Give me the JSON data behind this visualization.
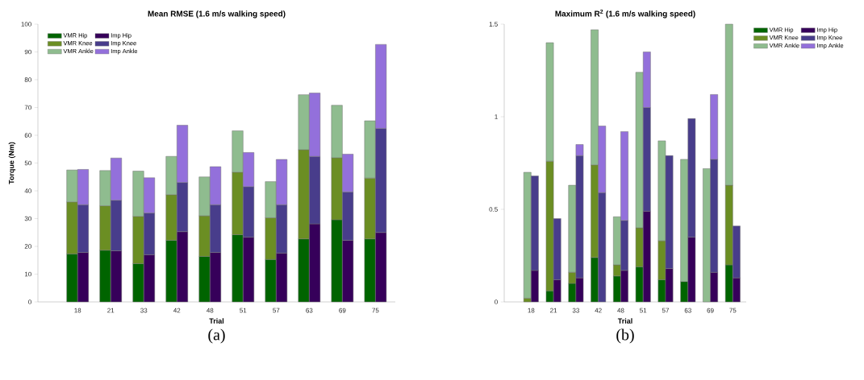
{
  "chart_data": [
    {
      "type": "bar",
      "title": "Mean RMSE (1.6 m/s walking speed)",
      "xlabel": "Trial",
      "ylabel": "Torque (Nm)",
      "legend": "top left",
      "categories": [
        "18",
        "21",
        "33",
        "42",
        "48",
        "51",
        "57",
        "63",
        "69",
        "75"
      ],
      "ylim": [
        0,
        100
      ],
      "yticks": [
        0,
        10,
        20,
        30,
        40,
        50,
        60,
        70,
        80,
        90,
        100
      ],
      "series": [
        {
          "name": "VMR Hip",
          "color": "#006400",
          "values": [
            17.3,
            18.6,
            13.8,
            22.2,
            16.4,
            24.2,
            15.3,
            22.7,
            29.6,
            22.7
          ],
          "base": [
            0,
            0,
            0,
            0,
            0,
            0,
            0,
            0,
            0,
            0
          ]
        },
        {
          "name": "VMR Knee",
          "color": "#6b8e23",
          "values": [
            18.7,
            16,
            17,
            16.4,
            14.6,
            22.5,
            15,
            32.1,
            22.3,
            21.9
          ],
          "base": [
            17.3,
            18.6,
            13.8,
            22.2,
            16.4,
            24.2,
            15.3,
            22.7,
            29.6,
            22.7
          ]
        },
        {
          "name": "VMR Ankle",
          "color": "#8fbc8f",
          "values": [
            11.5,
            12.7,
            16.3,
            13.8,
            14,
            14.9,
            13,
            19.8,
            18.9,
            20.6
          ],
          "base": [
            36,
            34.6,
            30.8,
            38.6,
            31,
            46.7,
            30.3,
            54.8,
            51.9,
            44.6
          ]
        },
        {
          "name": "Imp Hip",
          "color": "#36005a",
          "values": [
            17.8,
            18.4,
            17,
            25.3,
            17.8,
            23.3,
            17.6,
            28.1,
            22.2,
            25
          ],
          "base": [
            0,
            0,
            0,
            0,
            0,
            0,
            0,
            0,
            0,
            0
          ]
        },
        {
          "name": "Imp Knee",
          "color": "#483d8b",
          "values": [
            17.2,
            18.2,
            15,
            17.7,
            17.2,
            18.2,
            17.4,
            24.3,
            17.4,
            37.5
          ],
          "base": [
            17.8,
            18.4,
            17,
            25.3,
            17.8,
            23.3,
            17.6,
            28.1,
            22.2,
            25
          ]
        },
        {
          "name": "Imp Ankle",
          "color": "#9370db",
          "values": [
            12.7,
            15.2,
            12.7,
            20.6,
            13.7,
            12.3,
            16.3,
            22.8,
            13.6,
            30.2
          ],
          "base": [
            35,
            36.6,
            32,
            43,
            35,
            41.5,
            35,
            52.4,
            39.6,
            62.5
          ]
        }
      ],
      "annotations": [
        "(a)"
      ]
    },
    {
      "type": "bar",
      "title": "Maximum R$^{2}$ (1.6 m/s walking speed)",
      "xlabel": "Trial",
      "legend": "right",
      "categories": [
        "18",
        "21",
        "33",
        "42",
        "48",
        "51",
        "57",
        "63",
        "69",
        "75"
      ],
      "ylim": [
        0,
        1.5
      ],
      "yticks": [
        0,
        0.5,
        1,
        1.5
      ],
      "series": [
        {
          "name": "VMR Hip",
          "color": "#006400",
          "values": [
            0,
            0.06,
            0.1,
            0.24,
            0.14,
            0.19,
            0.12,
            0.11,
            0,
            0.2
          ],
          "base": [
            null,
            0,
            0,
            0,
            0,
            0,
            0,
            0,
            null,
            0
          ]
        },
        {
          "name": "VMR Knee",
          "color": "#6b8e23",
          "values": [
            0.02,
            0.7,
            0.06,
            0.5,
            0.06,
            0.21,
            0.21,
            0,
            0,
            0.43
          ],
          "base": [
            0,
            0.06,
            0.1,
            0.24,
            0.14,
            0.19,
            0.12,
            null,
            null,
            0.2
          ]
        },
        {
          "name": "VMR Ankle",
          "color": "#8fbc8f",
          "values": [
            0.68,
            0.64,
            0.47,
            0.73,
            0.26,
            0.84,
            0.54,
            0.66,
            0.72,
            0.87
          ],
          "base": [
            0.02,
            0.76,
            0.16,
            0.74,
            0.2,
            0.4,
            0.33,
            0.11,
            0,
            0.63
          ]
        },
        {
          "name": "Imp Hip",
          "color": "#36005a",
          "values": [
            0.17,
            0.12,
            0.13,
            0,
            0.17,
            0.49,
            0.18,
            0.35,
            0.16,
            0.13
          ],
          "base": [
            0,
            0,
            0,
            null,
            0,
            0,
            0,
            0,
            0,
            0
          ]
        },
        {
          "name": "Imp Knee",
          "color": "#483d8b",
          "values": [
            0.51,
            0.33,
            0.66,
            0.59,
            0.27,
            0.56,
            0.61,
            0.64,
            0.61,
            0.28
          ],
          "base": [
            0.17,
            0.12,
            0.13,
            0,
            0.17,
            0.49,
            0.18,
            0.35,
            0.16,
            0.13
          ]
        },
        {
          "name": "Imp Ankle",
          "color": "#9370db",
          "values": [
            0,
            0,
            0.06,
            0.36,
            0.48,
            0.3,
            0,
            0,
            0.35,
            0
          ],
          "base": [
            null,
            null,
            0.79,
            0.59,
            0.44,
            1.05,
            null,
            null,
            0.77,
            null
          ]
        }
      ],
      "annotations": [
        "(b)"
      ]
    }
  ]
}
